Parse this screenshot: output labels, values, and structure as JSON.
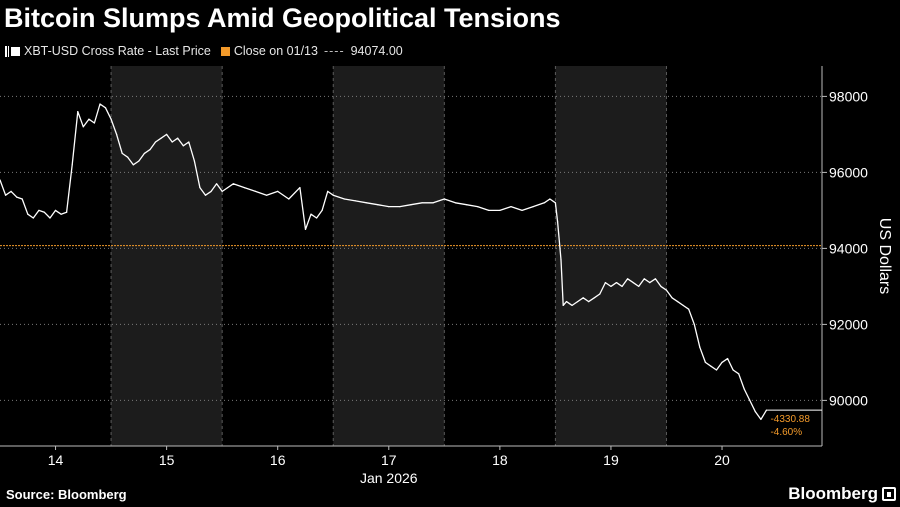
{
  "title": "Bitcoin Slumps Amid Geopolitical Tensions",
  "legend": {
    "series_label": "XBT-USD Cross Rate - Last Price",
    "reference_label": "Close on 01/13",
    "reference_dashes": "----",
    "reference_value": "94074.00"
  },
  "footer": {
    "source": "Source: Bloomberg",
    "brand": "Bloomberg"
  },
  "colors": {
    "background": "#000000",
    "price_line": "#ffffff",
    "reference_line": "#f39a2a",
    "shaded_band": "#1c1c1c",
    "grid": "#7a7a7a",
    "annotation": "#f39a2a"
  },
  "chart_data": {
    "type": "line",
    "title": "Bitcoin Slumps Amid Geopolitical Tensions",
    "xlabel": "Jan 2026",
    "ylabel": "US Dollars",
    "x_ticks": [
      "14",
      "15",
      "16",
      "17",
      "18",
      "19",
      "20"
    ],
    "x_range": [
      13.5,
      20.9
    ],
    "y_ticks": [
      90000,
      92000,
      94000,
      96000,
      98000
    ],
    "y_tick_labels": [
      "90000",
      "92000",
      "94000",
      "96000",
      "98000"
    ],
    "ylim": [
      88800,
      98800
    ],
    "grid": "horizontal dotted",
    "shaded_days": [
      [
        14.5,
        15.5
      ],
      [
        16.5,
        17.5
      ],
      [
        18.5,
        19.5
      ]
    ],
    "reference_line": {
      "label": "Close on 01/13",
      "value": 94074.0
    },
    "series": [
      {
        "name": "XBT-USD Cross Rate - Last Price",
        "x": [
          13.5,
          13.55,
          13.6,
          13.65,
          13.7,
          13.75,
          13.8,
          13.85,
          13.9,
          13.95,
          14.0,
          14.05,
          14.1,
          14.15,
          14.2,
          14.25,
          14.3,
          14.35,
          14.4,
          14.45,
          14.5,
          14.55,
          14.6,
          14.65,
          14.7,
          14.75,
          14.8,
          14.85,
          14.9,
          14.95,
          15.0,
          15.05,
          15.1,
          15.15,
          15.2,
          15.25,
          15.3,
          15.35,
          15.4,
          15.45,
          15.5,
          15.55,
          15.6,
          15.7,
          15.8,
          15.9,
          16.0,
          16.1,
          16.2,
          16.25,
          16.3,
          16.35,
          16.4,
          16.45,
          16.5,
          16.6,
          16.7,
          16.8,
          16.9,
          17.0,
          17.1,
          17.2,
          17.3,
          17.4,
          17.5,
          17.6,
          17.7,
          17.8,
          17.9,
          18.0,
          18.1,
          18.2,
          18.3,
          18.4,
          18.45,
          18.5,
          18.52,
          18.55,
          18.57,
          18.6,
          18.65,
          18.7,
          18.75,
          18.8,
          18.85,
          18.9,
          18.95,
          19.0,
          19.05,
          19.1,
          19.15,
          19.2,
          19.25,
          19.3,
          19.35,
          19.4,
          19.45,
          19.5,
          19.55,
          19.6,
          19.65,
          19.7,
          19.75,
          19.8,
          19.85,
          19.9,
          19.95,
          20.0,
          20.05,
          20.1,
          20.15,
          20.2,
          20.25,
          20.3,
          20.35,
          20.4
        ],
        "values": [
          95800,
          95400,
          95500,
          95350,
          95300,
          94900,
          94800,
          95000,
          94950,
          94800,
          95000,
          94900,
          94950,
          96200,
          97600,
          97200,
          97400,
          97300,
          97800,
          97700,
          97400,
          97000,
          96500,
          96400,
          96200,
          96300,
          96500,
          96600,
          96800,
          96900,
          97000,
          96800,
          96900,
          96700,
          96800,
          96300,
          95600,
          95400,
          95500,
          95700,
          95500,
          95600,
          95700,
          95600,
          95500,
          95400,
          95500,
          95300,
          95600,
          94500,
          94900,
          94800,
          95000,
          95500,
          95400,
          95300,
          95250,
          95200,
          95150,
          95100,
          95100,
          95150,
          95200,
          95200,
          95300,
          95200,
          95150,
          95100,
          95000,
          95000,
          95100,
          95000,
          95100,
          95200,
          95300,
          95200,
          94700,
          93700,
          92500,
          92600,
          92500,
          92600,
          92700,
          92600,
          92700,
          92800,
          93100,
          93000,
          93100,
          93000,
          93200,
          93100,
          93000,
          93200,
          93100,
          93200,
          93000,
          92900,
          92700,
          92600,
          92500,
          92400,
          92000,
          91400,
          91000,
          90900,
          90800,
          91000,
          91100,
          90800,
          90700,
          90300,
          90000,
          89700,
          89500,
          89744
        ],
        "last_label": "-4330.88",
        "last_pct_label": "-4.60%"
      }
    ]
  }
}
